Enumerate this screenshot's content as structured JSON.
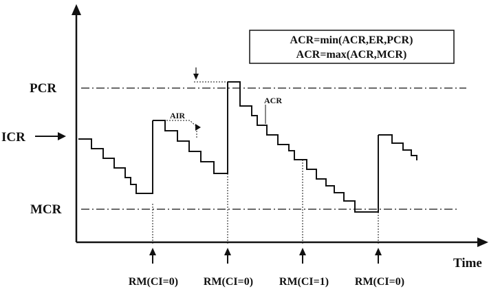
{
  "labels": {
    "pcr": "PCR",
    "icr": "ICR",
    "mcr": "MCR",
    "time": "Time",
    "acr": "ACR",
    "air": "AIR"
  },
  "rule_box": {
    "line1": "ACR=min(ACR,ER,PCR)",
    "line2": "ACR=max(ACR,MCR)"
  },
  "rm_events": [
    {
      "label": "RM(CI=0)"
    },
    {
      "label": "RM(CI=0)"
    },
    {
      "label": "RM(CI=1)"
    },
    {
      "label": "RM(CI=0)"
    }
  ]
}
